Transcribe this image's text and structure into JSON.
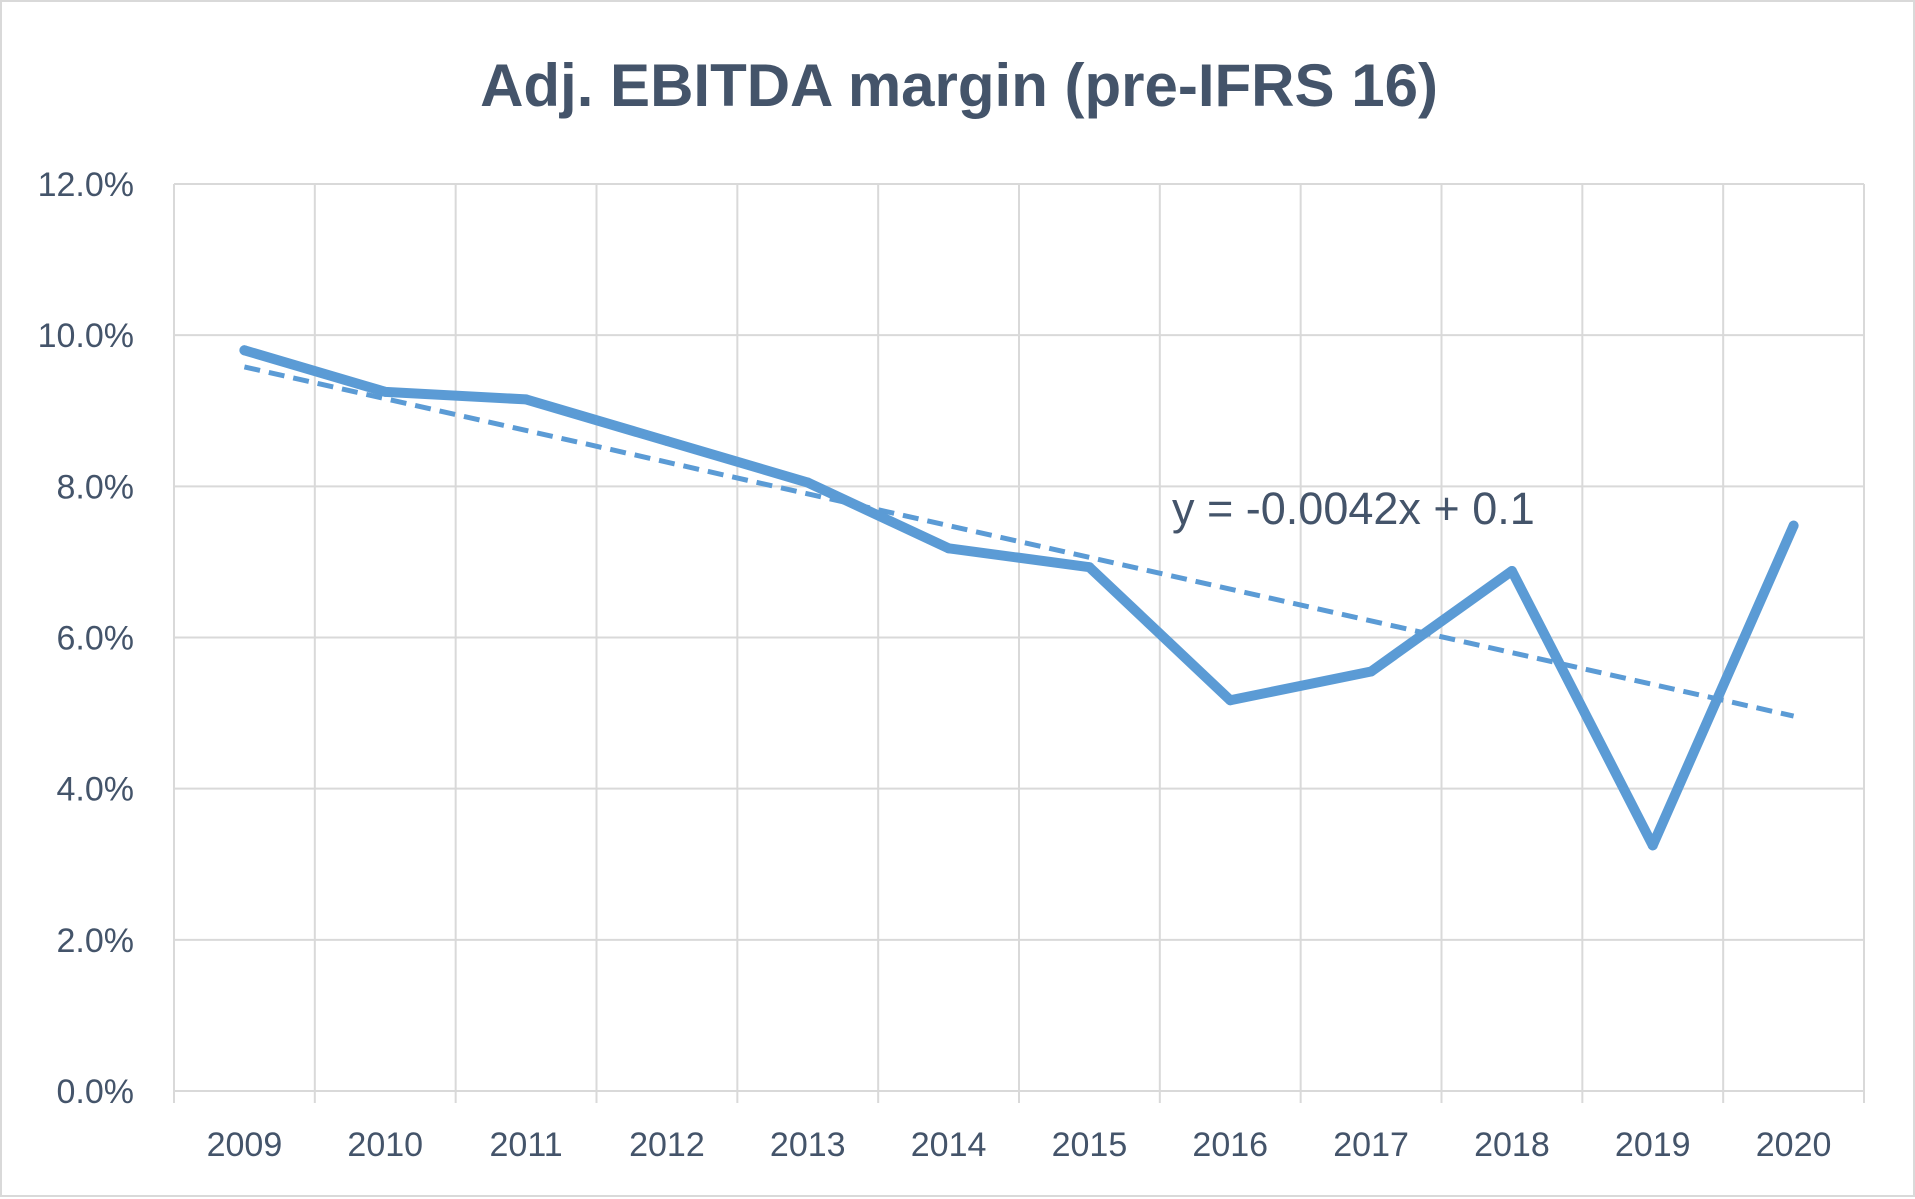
{
  "chart_data": {
    "type": "line",
    "title": "Adj. EBITDA margin (pre-IFRS 16)",
    "xlabel": "",
    "ylabel": "",
    "categories": [
      "2009",
      "2010",
      "2011",
      "2012",
      "2013",
      "2014",
      "2015",
      "2016",
      "2017",
      "2018",
      "2019",
      "2020"
    ],
    "series": [
      {
        "values": [
          0.098,
          0.0925,
          0.0915,
          0.086,
          0.0805,
          0.0718,
          0.0693,
          0.0517,
          0.0555,
          0.0688,
          0.0325,
          0.0748
        ],
        "color": "#5b9bd5"
      }
    ],
    "trendline": {
      "type": "linear",
      "equation": "y = -0.0042x + 0.1",
      "slope": -0.0042,
      "intercept": 0.1,
      "style": "dashed",
      "color": "#5b9bd5"
    },
    "ylim": [
      0,
      0.12
    ],
    "y_ticks": [
      "0.0%",
      "2.0%",
      "4.0%",
      "6.0%",
      "8.0%",
      "10.0%",
      "12.0%"
    ],
    "grid": true,
    "legend": "none"
  },
  "colors": {
    "series": "#5b9bd5",
    "grid": "#d9d9d9",
    "text": "#44546a"
  }
}
